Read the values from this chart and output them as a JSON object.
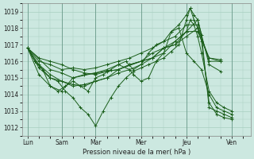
{
  "background_color": "#cce8e0",
  "line_color": "#1a5e1a",
  "grid_color": "#a8cfc0",
  "xlabel": "Pression niveau de la mer( hPa )",
  "ylim": [
    1011.5,
    1019.5
  ],
  "yticks": [
    1012,
    1013,
    1014,
    1015,
    1016,
    1017,
    1018,
    1019
  ],
  "xtick_labels": [
    "Lun",
    "Sam",
    "Mar",
    "Mer",
    "Jeu",
    "Ven"
  ],
  "xtick_pos": [
    0,
    18,
    36,
    60,
    84,
    108
  ],
  "xlim": [
    -3,
    118
  ],
  "series": [
    [
      0,
      1016.8,
      6,
      1016.2,
      12,
      1016.0,
      18,
      1015.8,
      24,
      1015.5,
      30,
      1015.3,
      36,
      1015.2,
      42,
      1015.4,
      48,
      1015.5,
      54,
      1015.8,
      60,
      1016.0,
      66,
      1016.5,
      72,
      1016.8,
      78,
      1017.0,
      84,
      1017.5,
      90,
      1018.0,
      96,
      1016.2,
      102,
      1016.1
    ],
    [
      0,
      1016.8,
      6,
      1015.6,
      12,
      1015.0,
      18,
      1014.8,
      24,
      1014.5,
      30,
      1014.6,
      36,
      1014.8,
      42,
      1015.0,
      48,
      1015.3,
      54,
      1015.5,
      60,
      1015.8,
      66,
      1016.2,
      72,
      1016.8,
      78,
      1017.2,
      84,
      1017.8,
      90,
      1018.5,
      96,
      1015.8,
      102,
      1015.4
    ],
    [
      0,
      1016.8,
      4,
      1016.0,
      8,
      1015.5,
      12,
      1015.0,
      16,
      1014.8,
      20,
      1014.2,
      24,
      1013.8,
      28,
      1013.2,
      32,
      1012.8,
      36,
      1012.1,
      40,
      1013.0,
      44,
      1013.8,
      48,
      1014.5,
      52,
      1015.0,
      56,
      1015.4,
      60,
      1015.6,
      64,
      1015.8,
      68,
      1016.0,
      72,
      1016.2,
      76,
      1016.6,
      80,
      1017.0,
      84,
      1018.5,
      86,
      1019.2,
      88,
      1018.8,
      90,
      1018.5,
      92,
      1017.6,
      96,
      1013.2,
      100,
      1013.0,
      104,
      1012.8,
      108,
      1012.6
    ],
    [
      0,
      1016.8,
      12,
      1015.5,
      18,
      1015.3,
      24,
      1015.0,
      36,
      1015.3,
      48,
      1015.5,
      60,
      1016.0,
      66,
      1016.2,
      72,
      1016.8,
      78,
      1017.0,
      84,
      1017.8,
      90,
      1017.8,
      96,
      1016.2,
      102,
      1016.0
    ],
    [
      0,
      1016.8,
      6,
      1016.0,
      12,
      1015.8,
      18,
      1015.5,
      24,
      1015.6,
      30,
      1015.5,
      36,
      1015.6,
      42,
      1015.8,
      48,
      1016.0,
      54,
      1016.2,
      60,
      1016.5,
      66,
      1016.8,
      72,
      1017.2,
      78,
      1017.5,
      84,
      1018.2,
      90,
      1018.2,
      96,
      1016.0,
      102,
      1016.0
    ],
    [
      0,
      1016.8,
      6,
      1015.8,
      12,
      1015.2,
      18,
      1014.8,
      24,
      1014.6,
      30,
      1014.5,
      36,
      1014.8,
      42,
      1015.0,
      48,
      1015.5,
      54,
      1015.8,
      60,
      1016.0,
      66,
      1016.2,
      72,
      1016.5,
      78,
      1017.2,
      84,
      1017.8,
      86,
      1018.5,
      88,
      1018.2,
      90,
      1017.5,
      92,
      1016.5,
      96,
      1014.2,
      100,
      1013.5,
      104,
      1013.2,
      108,
      1013.0
    ],
    [
      0,
      1016.8,
      6,
      1015.2,
      12,
      1014.5,
      18,
      1014.2,
      24,
      1015.0,
      30,
      1015.2,
      36,
      1015.3,
      42,
      1015.5,
      48,
      1015.8,
      54,
      1015.5,
      56,
      1015.2,
      60,
      1014.8,
      64,
      1015.0,
      68,
      1016.0,
      72,
      1016.5,
      76,
      1017.8,
      80,
      1018.2,
      84,
      1018.8,
      86,
      1019.2,
      88,
      1018.5,
      90,
      1018.0,
      92,
      1017.2,
      96,
      1013.5,
      100,
      1012.8,
      104,
      1012.6,
      108,
      1012.5
    ],
    [
      0,
      1016.8,
      4,
      1016.0,
      8,
      1015.5,
      12,
      1014.5,
      16,
      1014.2,
      20,
      1014.5,
      24,
      1014.8,
      28,
      1014.5,
      32,
      1014.2,
      36,
      1015.0,
      40,
      1015.2,
      44,
      1015.5,
      48,
      1015.8,
      52,
      1016.0,
      56,
      1015.5,
      60,
      1015.8,
      64,
      1016.5,
      68,
      1017.0,
      72,
      1017.2,
      76,
      1017.8,
      80,
      1018.0,
      84,
      1016.5,
      88,
      1016.0,
      92,
      1015.5,
      96,
      1014.0,
      100,
      1013.2,
      104,
      1013.0,
      108,
      1012.8
    ]
  ]
}
